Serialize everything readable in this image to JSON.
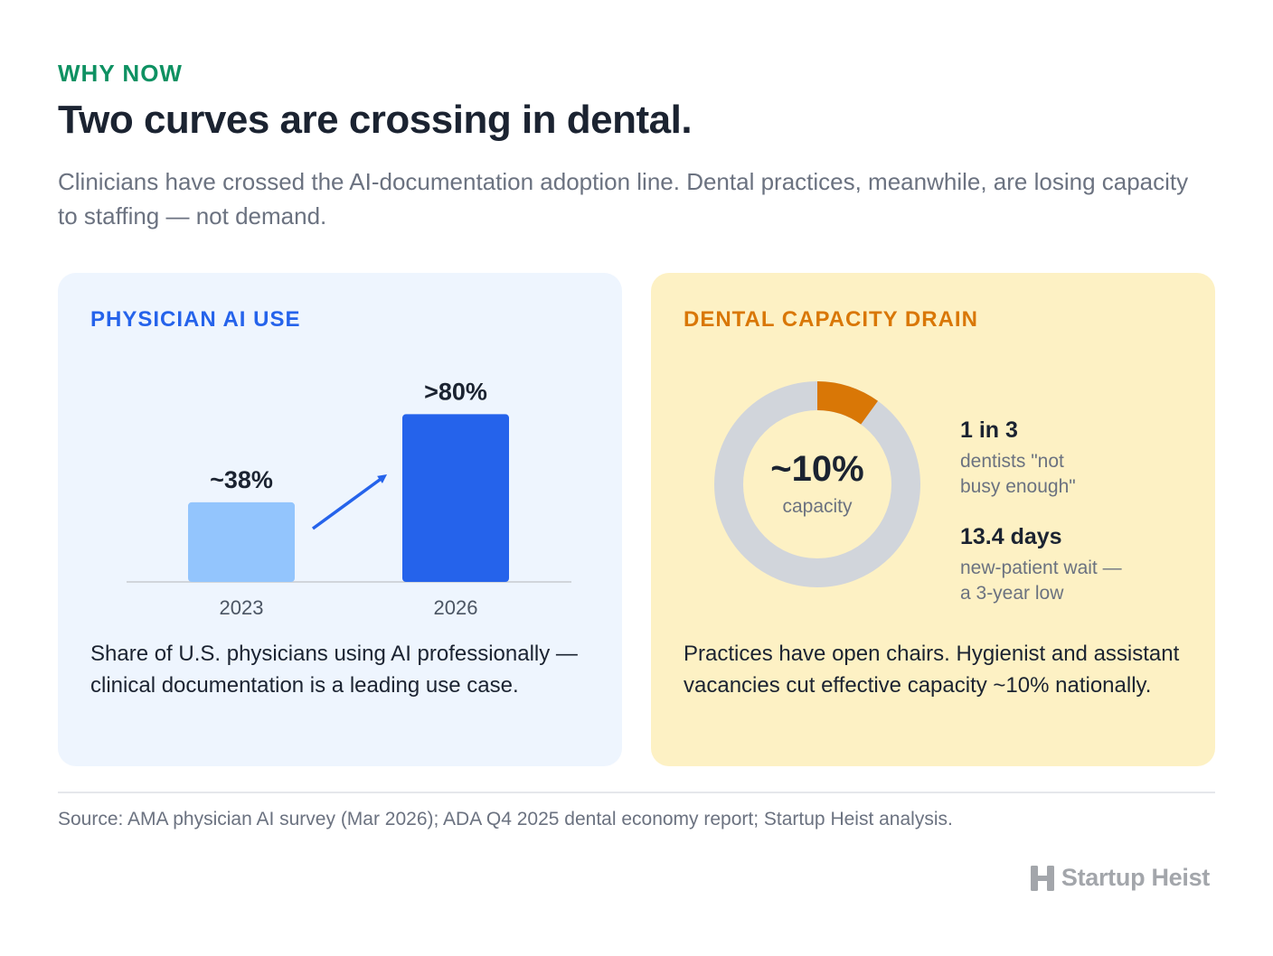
{
  "header": {
    "eyebrow": "WHY NOW",
    "title": "Two curves are crossing in dental.",
    "subtitle": "Clinicians have crossed the AI-documentation adoption line. Dental practices, meanwhile, are losing capacity to staffing — not demand."
  },
  "left_card": {
    "title": "PHYSICIAN AI USE",
    "description": "Share of U.S. physicians using AI professionally — clinical documentation is a leading use case."
  },
  "right_card": {
    "title": "DENTAL CAPACITY DRAIN",
    "donut_value": "~10%",
    "donut_label": "capacity",
    "stats": [
      {
        "value": "1 in 3",
        "label_line1": "dentists \"not",
        "label_line2": "busy enough\""
      },
      {
        "value": "13.4 days",
        "label_line1": "new-patient wait —",
        "label_line2": "a 3-year low"
      }
    ],
    "description": "Practices have open chairs. Hygienist and assistant vacancies cut effective capacity ~10% nationally."
  },
  "chart_data": [
    {
      "type": "bar",
      "categories": [
        "2023",
        "2026"
      ],
      "values": [
        38,
        80
      ],
      "data_labels": [
        "~38%",
        ">80%"
      ],
      "title": "PHYSICIAN AI USE",
      "ylim": [
        0,
        100
      ],
      "colors": [
        "#93c5fd",
        "#2563eb"
      ],
      "grid": false
    },
    {
      "type": "pie",
      "slices": [
        {
          "value": 10,
          "color": "#d97706"
        },
        {
          "value": 90,
          "color": "#d1d5db"
        }
      ],
      "center_label": "~10%",
      "center_sublabel": "capacity",
      "title": "DENTAL CAPACITY DRAIN"
    }
  ],
  "footer": {
    "source": "Source: AMA physician AI survey (Mar 2026); ADA Q4 2025 dental economy report; Startup Heist analysis.",
    "brand": "Startup Heist"
  },
  "colors": {
    "accent_green": "#0e9162",
    "accent_blue": "#2563eb",
    "accent_orange": "#d97706",
    "left_bg": "#eef5fe",
    "right_bg": "#fdf1c4"
  }
}
